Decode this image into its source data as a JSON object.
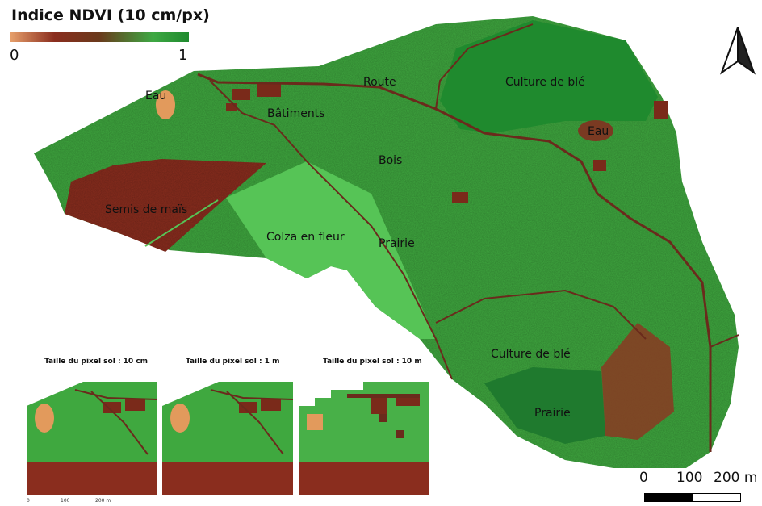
{
  "legend": {
    "title": "Indice NDVI (10 cm/px)",
    "min_label": "0",
    "max_label": "1",
    "colors": [
      "#e8a16c",
      "#8a2d1e",
      "#6a3a1c",
      "#3ea843",
      "#1f8a2e"
    ]
  },
  "map_labels": {
    "eau_west": "Eau",
    "route": "Route",
    "culture_ble_north": "Culture de blé",
    "batiments": "Bâtiments",
    "eau_east": "Eau",
    "bois": "Bois",
    "semis_mais": "Semis de maïs",
    "colza": "Colza en fleur",
    "prairie_center": "Prairie",
    "culture_ble_south": "Culture de blé",
    "prairie_south": "Prairie"
  },
  "insets": {
    "titles": [
      "Taille du pixel sol : 10 cm",
      "Taille du pixel sol : 1 m",
      "Taille du pixel sol : 10 m"
    ],
    "scale_labels": [
      "0",
      "100",
      "200 m"
    ]
  },
  "scale": {
    "labels": [
      "0",
      "100",
      "200 m"
    ]
  },
  "north_arrow": {
    "icon": "north-arrow-icon"
  },
  "colors": {
    "vegetation": "#3fa83f",
    "dense_vegetation": "#1f8a2e",
    "bare_soil": "#8a2d1e",
    "water": "#e29a5c"
  }
}
